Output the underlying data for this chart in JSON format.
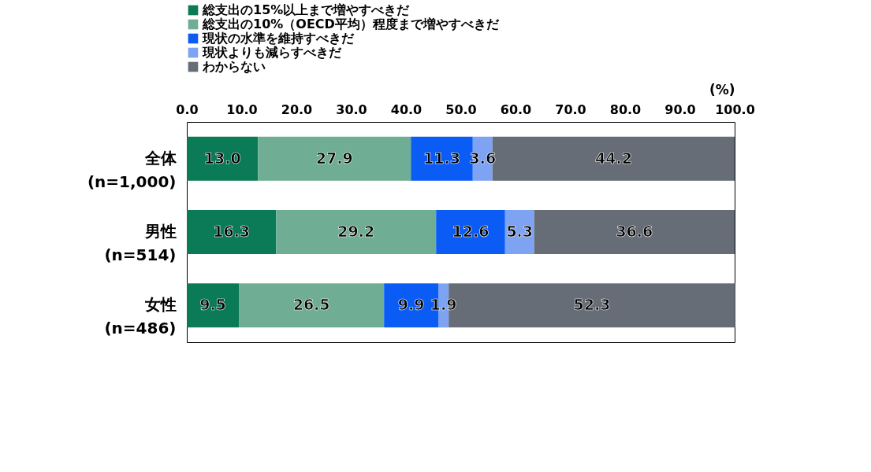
{
  "chart_data": {
    "type": "bar",
    "orientation": "horizontal",
    "stacked": true,
    "categories": [
      "全体\n(n=1,000)",
      "男性\n(n=514)",
      "女性\n(n=486)"
    ],
    "series": [
      {
        "name": "総支出の15%以上まで増やすべきだ",
        "color": "#0b7a56",
        "values": [
          13.0,
          16.3,
          9.5
        ],
        "value_labels": [
          "13.0",
          "16.3",
          "9.5"
        ]
      },
      {
        "name": "総支出の10%（OECD平均）程度まで増やすべきだ",
        "color": "#6fae95",
        "values": [
          27.9,
          29.2,
          26.5
        ],
        "value_labels": [
          "27.9",
          "29.2",
          "26.5"
        ]
      },
      {
        "name": "現状の水準を維持すべきだ",
        "color": "#0a5cf5",
        "values": [
          11.3,
          12.6,
          9.9
        ],
        "value_labels": [
          "11.3",
          "12.6",
          "9.9"
        ]
      },
      {
        "name": "現状よりも減らすべきだ",
        "color": "#7da3f2",
        "values": [
          3.6,
          5.3,
          1.9
        ],
        "value_labels": [
          "3.6",
          "5.3",
          "1.9"
        ]
      },
      {
        "name": "わからない",
        "color": "#666d77",
        "values": [
          44.2,
          36.6,
          52.3
        ],
        "value_labels": [
          "44.2",
          "36.6",
          "52.3"
        ]
      }
    ],
    "xlabel": "(%)",
    "xlim": [
      0,
      100
    ],
    "xticks": [
      {
        "value": 0,
        "label": "0.0"
      },
      {
        "value": 10,
        "label": "10.0"
      },
      {
        "value": 20,
        "label": "20.0"
      },
      {
        "value": 30,
        "label": "30.0"
      },
      {
        "value": 40,
        "label": "40.0"
      },
      {
        "value": 50,
        "label": "50.0"
      },
      {
        "value": 60,
        "label": "60.0"
      },
      {
        "value": 70,
        "label": "70.0"
      },
      {
        "value": 80,
        "label": "80.0"
      },
      {
        "value": 90,
        "label": "90.0"
      },
      {
        "value": 100,
        "label": "100.0"
      }
    ],
    "legend": "top"
  }
}
